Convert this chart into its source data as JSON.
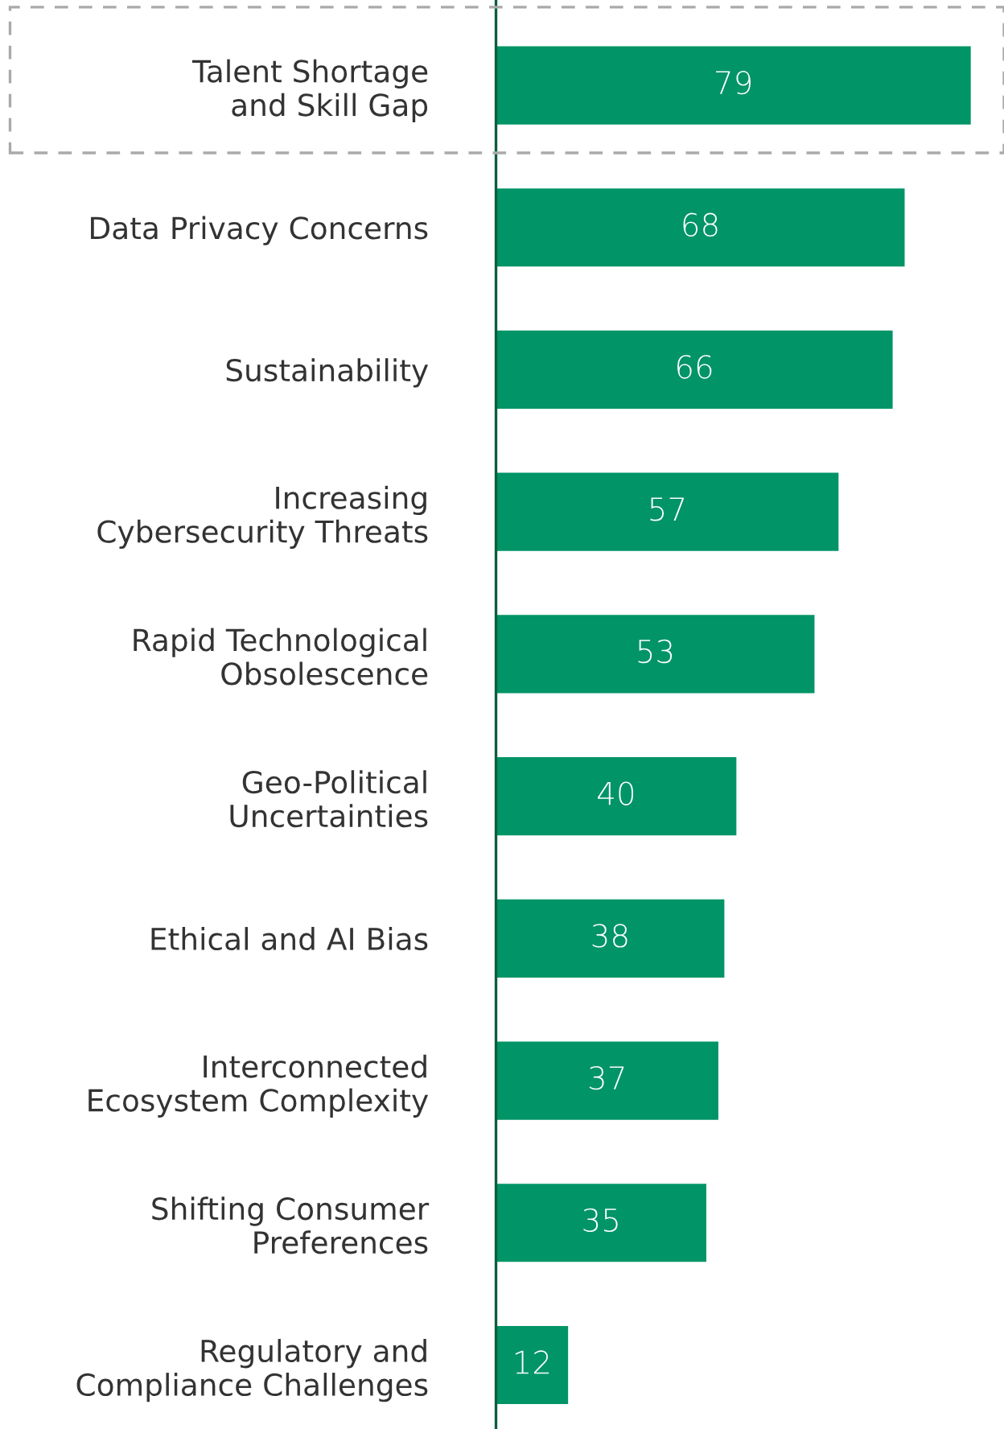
{
  "chart_data": {
    "type": "bar",
    "orientation": "horizontal",
    "data_labels": true,
    "tick_labels": "y",
    "categories": [
      "Talent Shortage\nand Skill Gap",
      "Data Privacy Concerns",
      "Sustainability",
      "Increasing\nCybersecurity Threats",
      "Rapid Technological\nObsolescence",
      "Geo-Political\nUncertainties",
      "Ethical and AI Bias",
      "Interconnected\nEcosystem Complexity",
      "Shifting Consumer\nPreferences",
      "Regulatory and\nCompliance Challenges"
    ],
    "values": [
      79,
      68,
      66,
      57,
      53,
      40,
      38,
      37,
      35,
      12
    ],
    "color": "#009466"
  }
}
